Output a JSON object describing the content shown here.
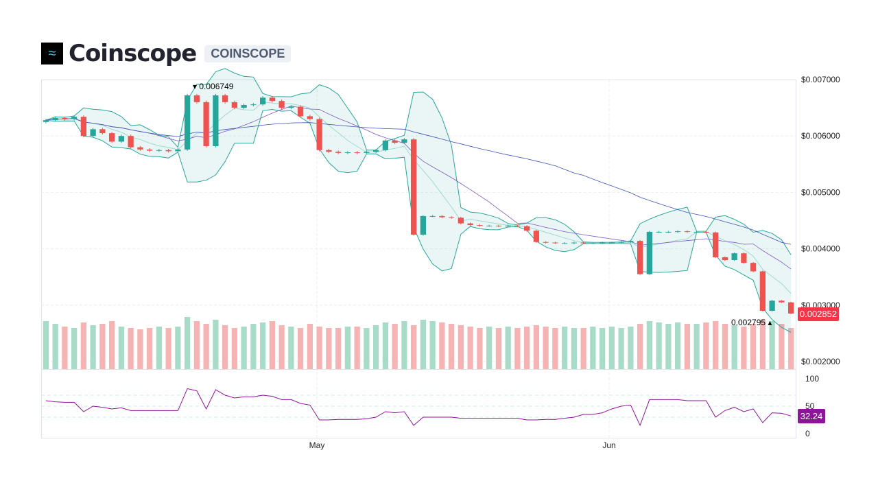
{
  "header": {
    "title": "Coinscope",
    "badge": "COINSCOPE",
    "logo_icon": "coinscope-logo"
  },
  "chart_data": {
    "type": "candlestick",
    "x_start": "Apr 2",
    "x_end": "Jun 20",
    "x_ticks": [
      "May",
      "Jun"
    ],
    "y_ticks": [
      "$0.007000",
      "$0.006000",
      "$0.005000",
      "$0.004000",
      "$0.003000",
      "$0.002000"
    ],
    "ylim": [
      0.002,
      0.007
    ],
    "closes": [
      0.00628,
      0.00632,
      0.0063,
      0.00634,
      0.006,
      0.00612,
      0.00605,
      0.0059,
      0.006,
      0.0058,
      0.00576,
      0.00574,
      0.00575,
      0.00573,
      0.00576,
      0.00672,
      0.0066,
      0.00582,
      0.00672,
      0.0066,
      0.0065,
      0.00655,
      0.00656,
      0.00668,
      0.00662,
      0.0065,
      0.00652,
      0.00635,
      0.0063,
      0.00575,
      0.00572,
      0.0057,
      0.00571,
      0.0057,
      0.00572,
      0.00575,
      0.00592,
      0.00588,
      0.00594,
      0.00425,
      0.00458,
      0.00458,
      0.00456,
      0.00455,
      0.00445,
      0.00442,
      0.00441,
      0.00441,
      0.0044,
      0.00441,
      0.0044,
      0.00432,
      0.00412,
      0.00411,
      0.0041,
      0.0041,
      0.00411,
      0.0041,
      0.0041,
      0.00411,
      0.00411,
      0.00412,
      0.00414,
      0.00355,
      0.0043,
      0.0043,
      0.0043,
      0.00431,
      0.0043,
      0.0043,
      0.00429,
      0.00385,
      0.0038,
      0.00392,
      0.00375,
      0.0036,
      0.0029,
      0.00308,
      0.00305,
      0.002852
    ],
    "volume": [
      70,
      66,
      62,
      60,
      68,
      64,
      66,
      70,
      62,
      60,
      58,
      60,
      62,
      60,
      62,
      76,
      70,
      66,
      72,
      64,
      60,
      62,
      66,
      68,
      70,
      64,
      62,
      60,
      66,
      62,
      60,
      60,
      62,
      62,
      60,
      64,
      68,
      66,
      70,
      64,
      72,
      70,
      68,
      66,
      64,
      62,
      60,
      62,
      60,
      62,
      60,
      62,
      64,
      62,
      60,
      62,
      60,
      60,
      62,
      60,
      62,
      60,
      62,
      66,
      70,
      68,
      66,
      68,
      66,
      66,
      68,
      70,
      66,
      64,
      62,
      66,
      72,
      70,
      66,
      60
    ],
    "high_label": "0.006749",
    "low_label": "0.002795",
    "last_price": "0.002852",
    "rsi": {
      "ticks": [
        "100",
        "50",
        "0"
      ],
      "last": "32.24",
      "values": [
        60,
        58,
        57,
        57,
        40,
        50,
        48,
        45,
        47,
        42,
        42,
        42,
        42,
        42,
        42,
        82,
        78,
        45,
        80,
        70,
        65,
        67,
        67,
        70,
        68,
        62,
        62,
        55,
        52,
        25,
        25,
        26,
        26,
        26,
        27,
        30,
        40,
        38,
        40,
        15,
        30,
        30,
        30,
        30,
        28,
        28,
        28,
        28,
        28,
        28,
        28,
        25,
        25,
        26,
        26,
        28,
        30,
        35,
        35,
        38,
        45,
        50,
        52,
        15,
        62,
        62,
        62,
        62,
        60,
        60,
        60,
        30,
        42,
        48,
        40,
        45,
        20,
        38,
        37,
        32.24
      ]
    },
    "colors": {
      "up": "#26a69a",
      "down": "#ef5350",
      "band": "#26a69a",
      "ma_short": "#7e57c2",
      "ma_long": "#3f51b5",
      "rsi": "#8e1599",
      "last_price": "#f23645"
    }
  }
}
